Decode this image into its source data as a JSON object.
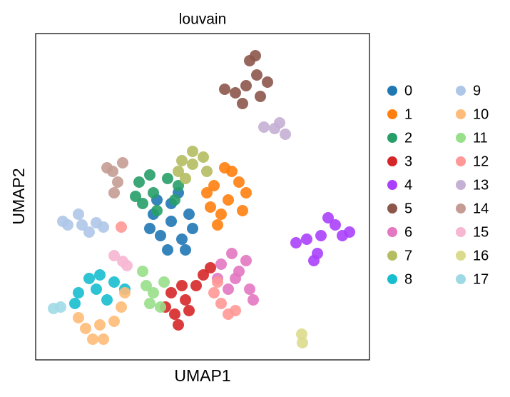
{
  "chart_data": {
    "type": "scatter",
    "title": "louvain",
    "x_label": "UMAP1",
    "y_label": "UMAP2",
    "xlim": [
      0,
      46.8
    ],
    "ylim": [
      0,
      45.7
    ],
    "legend": "right",
    "series": [
      {
        "name": "0",
        "color": "#1f77b4",
        "x": [
          19,
          16.5,
          21.5,
          17.5,
          20.5,
          19,
          16,
          22,
          18.5,
          20,
          17,
          21
        ],
        "y": [
          19.4,
          20.4,
          20.4,
          17.4,
          16.9,
          21.9,
          18.4,
          18.4,
          15.4,
          23.4,
          22.4,
          15.4
        ]
      },
      {
        "name": "1",
        "color": "#ff7f0e",
        "x": [
          27,
          25,
          28.5,
          26,
          29,
          24.5,
          27.5,
          25.5,
          29.5,
          24,
          26.5
        ],
        "y": [
          22.4,
          24.4,
          24.9,
          20.4,
          20.9,
          21.4,
          26.4,
          18.9,
          23.4,
          23.4,
          26.9
        ]
      },
      {
        "name": "2",
        "color": "#279e68",
        "x": [
          16.5,
          14.5,
          18.5,
          15,
          19.5,
          17,
          16,
          14,
          20
        ],
        "y": [
          23.4,
          24.9,
          25.4,
          21.9,
          22.4,
          20.9,
          25.9,
          22.9,
          24.4
        ]
      },
      {
        "name": "3",
        "color": "#d62728",
        "x": [
          21,
          19.5,
          22.5,
          20,
          23.5,
          19,
          21.5,
          20.5,
          24.5,
          18.2
        ],
        "y": [
          8.4,
          6.4,
          10.4,
          4.9,
          11.9,
          9.4,
          6.9,
          10.4,
          12.9,
          7.4
        ]
      },
      {
        "name": "4",
        "color": "#aa40fc",
        "x": [
          40,
          38,
          42,
          44,
          39.5,
          36.5,
          41,
          39,
          43
        ],
        "y": [
          17.4,
          16.9,
          18.9,
          17.9,
          14.9,
          16.4,
          19.9,
          13.9,
          17.4
        ]
      },
      {
        "name": "5",
        "color": "#8c564b",
        "x": [
          29.5,
          28,
          31,
          30,
          31.5,
          26.5,
          29,
          30.8,
          32.5
        ],
        "y": [
          38.4,
          37.4,
          39.9,
          41.9,
          36.9,
          37.9,
          35.9,
          42.6,
          38.9
        ]
      },
      {
        "name": "6",
        "color": "#e377c2",
        "x": [
          28,
          26,
          29.5,
          27,
          30,
          25.5,
          28.5,
          30.5,
          27.5
        ],
        "y": [
          11.4,
          13.4,
          13.9,
          9.9,
          9.9,
          11.4,
          12.4,
          8.4,
          14.9
        ]
      },
      {
        "name": "7",
        "color": "#b5bd61",
        "x": [
          22,
          20.5,
          23.5,
          21,
          24,
          22,
          20
        ],
        "y": [
          27.4,
          27.9,
          28.4,
          25.4,
          26.4,
          29.2,
          26.4
        ]
      },
      {
        "name": "8",
        "color": "#17becf",
        "x": [
          8.5,
          6,
          11,
          7.5,
          10,
          5.5,
          12.5,
          9
        ],
        "y": [
          9.9,
          9.4,
          10.9,
          11.4,
          8.4,
          7.9,
          9.9,
          11.9
        ]
      },
      {
        "name": "9",
        "color": "#aec7e8",
        "x": [
          6.5,
          4.5,
          8.5,
          6,
          7.5,
          9.5,
          3.8
        ],
        "y": [
          18.9,
          18.9,
          19.2,
          20.4,
          17.9,
          18.6,
          19.4
        ]
      },
      {
        "name": "10",
        "color": "#ffbb78",
        "x": [
          9,
          7,
          11,
          8,
          12,
          12.5,
          6,
          9.5
        ],
        "y": [
          4.9,
          4.4,
          5.4,
          2.9,
          7.4,
          9.4,
          5.9,
          2.9
        ]
      },
      {
        "name": "11",
        "color": "#98df8a",
        "x": [
          16.5,
          15.5,
          18,
          16,
          17.5,
          15
        ],
        "y": [
          9.4,
          10.4,
          10.9,
          7.9,
          7.4,
          12.4
        ]
      },
      {
        "name": "12",
        "color": "#ff9896",
        "x": [
          26,
          25,
          27,
          25.5,
          12,
          28
        ],
        "y": [
          7.9,
          9.4,
          6.4,
          10.9,
          18.6,
          6.9
        ]
      },
      {
        "name": "13",
        "color": "#c5b0d5",
        "x": [
          33.5,
          32,
          35,
          34.2
        ],
        "y": [
          32.4,
          32.6,
          31.6,
          33.2
        ]
      },
      {
        "name": "14",
        "color": "#c49c94",
        "x": [
          10.8,
          10,
          11.5,
          11,
          12.2
        ],
        "y": [
          26.4,
          26.9,
          24.9,
          23.4,
          27.6
        ]
      },
      {
        "name": "15",
        "color": "#f7b6d2",
        "x": [
          11,
          12.2,
          12.8
        ],
        "y": [
          14.6,
          13.8,
          13.2
        ]
      },
      {
        "name": "16",
        "color": "#dbdb8d",
        "x": [
          37.3,
          37.4
        ],
        "y": [
          3.6,
          2.4
        ]
      },
      {
        "name": "17",
        "color": "#9edae5",
        "x": [
          2.5,
          3.5
        ],
        "y": [
          7.2,
          7.4
        ]
      }
    ]
  }
}
